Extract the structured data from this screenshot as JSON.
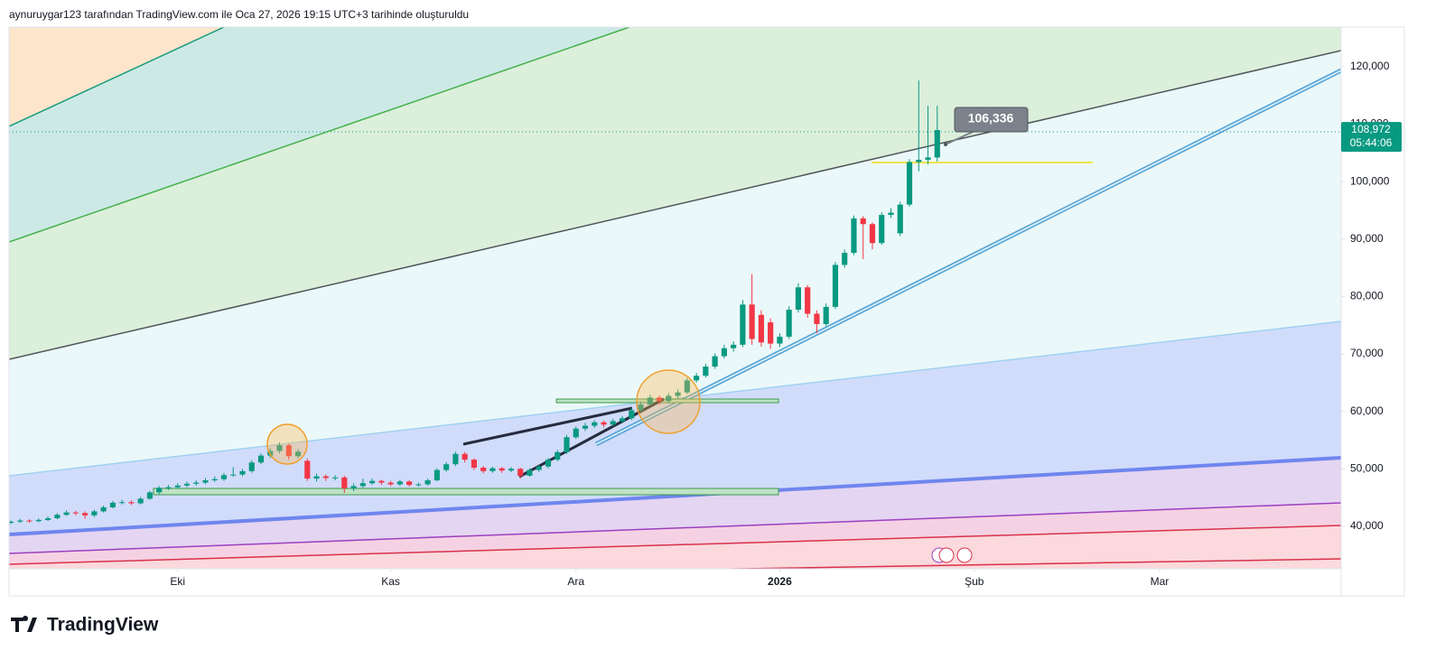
{
  "header": "aynuruygar123 tarafından TradingView.com ile Oca 27, 2026 19:15 UTC+3 tarihinde oluşturuldu",
  "logo": "TradingView",
  "chart_data": {
    "type": "candlestick",
    "up_color": "#089981",
    "down_color": "#f23645",
    "xlim": [
      -0.2,
      143.6
    ],
    "xticks": [
      {
        "value": 18,
        "label": "Eki"
      },
      {
        "value": 41,
        "label": "Kas"
      },
      {
        "value": 61,
        "label": "Ara"
      },
      {
        "value": 83,
        "label": "2026"
      },
      {
        "value": 104,
        "label": "Şub"
      },
      {
        "value": 124,
        "label": "Mar"
      }
    ],
    "ylim": [
      32600,
      126900
    ],
    "yticks": [
      {
        "value": 40000,
        "label": "40,000"
      },
      {
        "value": 50000,
        "label": "50,000"
      },
      {
        "value": 60000,
        "label": "60,000"
      },
      {
        "value": 70000,
        "label": "70,000"
      },
      {
        "value": 80000,
        "label": "80,000"
      },
      {
        "value": 90000,
        "label": "90,000"
      },
      {
        "value": 100000,
        "label": "100,000"
      },
      {
        "value": 110000,
        "label": "110,000"
      },
      {
        "value": 120000,
        "label": "120,000"
      }
    ],
    "open": [
      40600,
      40800,
      41000,
      40900,
      41100,
      41400,
      42000,
      42400,
      42300,
      41900,
      42600,
      43300,
      44100,
      44200,
      44000,
      44800,
      45900,
      46700,
      46800,
      47100,
      47400,
      47600,
      48000,
      48200,
      48900,
      49000,
      49600,
      51100,
      52300,
      53100,
      54100,
      52200,
      51400,
      48300,
      48700,
      48400,
      48500,
      46600,
      47000,
      47500,
      47900,
      47600,
      47300,
      47800,
      47200,
      47300,
      48000,
      49800,
      50800,
      52600,
      51600,
      50200,
      49600,
      50100,
      49700,
      50000,
      48800,
      49800,
      50400,
      51600,
      52900,
      55500,
      57000,
      57500,
      58100,
      57700,
      58300,
      58800,
      60200,
      61200,
      62400,
      61800,
      62700,
      63300,
      65400,
      66200,
      67800,
      69600,
      71000,
      71600,
      78600,
      76800,
      75500,
      71800,
      73000,
      77700,
      81600,
      77000,
      75200,
      78200,
      85500,
      87600,
      93600,
      92600,
      89300,
      94200,
      91000,
      96000,
      103400,
      103800,
      104200
    ],
    "high": [
      41000,
      41300,
      41200,
      41400,
      41700,
      42300,
      42800,
      42700,
      42600,
      42900,
      43600,
      44400,
      44600,
      44500,
      45100,
      46200,
      47000,
      47200,
      47500,
      47800,
      48000,
      48400,
      48700,
      49300,
      50300,
      50000,
      51500,
      52700,
      53600,
      54600,
      54400,
      53500,
      51800,
      49200,
      49000,
      48900,
      48800,
      47500,
      48300,
      48300,
      48100,
      47900,
      48100,
      48000,
      47600,
      48300,
      50100,
      51200,
      53000,
      52900,
      51800,
      50500,
      50400,
      50300,
      50300,
      50200,
      50100,
      50700,
      51900,
      53300,
      55900,
      57400,
      58000,
      58500,
      58400,
      58700,
      59200,
      60600,
      61700,
      62900,
      62800,
      63200,
      63800,
      65800,
      66700,
      68300,
      70100,
      71600,
      72200,
      79400,
      83900,
      77600,
      76200,
      73600,
      78300,
      82300,
      82000,
      77600,
      78800,
      86000,
      88200,
      94100,
      94000,
      92900,
      94700,
      95400,
      96500,
      103900,
      117600,
      113200,
      113200
    ],
    "low": [
      40400,
      40600,
      40600,
      40700,
      40900,
      41200,
      41800,
      41900,
      41300,
      41600,
      42400,
      43100,
      43800,
      43700,
      43800,
      44600,
      45600,
      46300,
      46500,
      46800,
      47100,
      47300,
      47700,
      47900,
      48600,
      48700,
      49300,
      50800,
      51900,
      52700,
      51600,
      51800,
      47900,
      47800,
      47900,
      48000,
      45800,
      46100,
      46700,
      47200,
      47200,
      47000,
      47000,
      46900,
      46900,
      47100,
      47800,
      49500,
      50500,
      51100,
      49800,
      49200,
      49300,
      49300,
      49400,
      48300,
      48600,
      49500,
      50100,
      51300,
      52600,
      55200,
      56600,
      57100,
      57200,
      57400,
      57900,
      58500,
      59900,
      60900,
      61200,
      61400,
      62300,
      63000,
      65000,
      65900,
      67400,
      69200,
      70400,
      71200,
      71600,
      71300,
      70900,
      71200,
      72600,
      77200,
      76300,
      73600,
      74800,
      77800,
      85000,
      87200,
      86500,
      88200,
      89000,
      93700,
      90500,
      95600,
      101800,
      103000,
      103500
    ],
    "close": [
      40800,
      41000,
      40900,
      41100,
      41400,
      42000,
      42400,
      42300,
      41900,
      42600,
      43300,
      44100,
      44200,
      44000,
      44800,
      45900,
      46700,
      46800,
      47100,
      47400,
      47600,
      48000,
      48200,
      48900,
      49000,
      49600,
      51100,
      52300,
      53100,
      54100,
      52200,
      53000,
      48300,
      48700,
      48400,
      48500,
      46600,
      47000,
      47500,
      47900,
      47600,
      47300,
      47800,
      47200,
      47300,
      48000,
      49800,
      50800,
      52600,
      51600,
      50200,
      49600,
      50100,
      49700,
      50000,
      48800,
      49800,
      50400,
      51600,
      52900,
      55500,
      57000,
      57500,
      58100,
      57700,
      58300,
      58800,
      60200,
      61200,
      62400,
      61800,
      62700,
      63300,
      65400,
      66200,
      67800,
      69600,
      71000,
      71600,
      78600,
      72600,
      72000,
      71800,
      73000,
      77700,
      81600,
      77000,
      75200,
      78200,
      85500,
      87600,
      93600,
      92600,
      89300,
      94200,
      94600,
      96000,
      103400,
      103800,
      104200,
      108972
    ],
    "last_label": "108,972",
    "countdown": "05:44:06",
    "callout": "106,336"
  }
}
